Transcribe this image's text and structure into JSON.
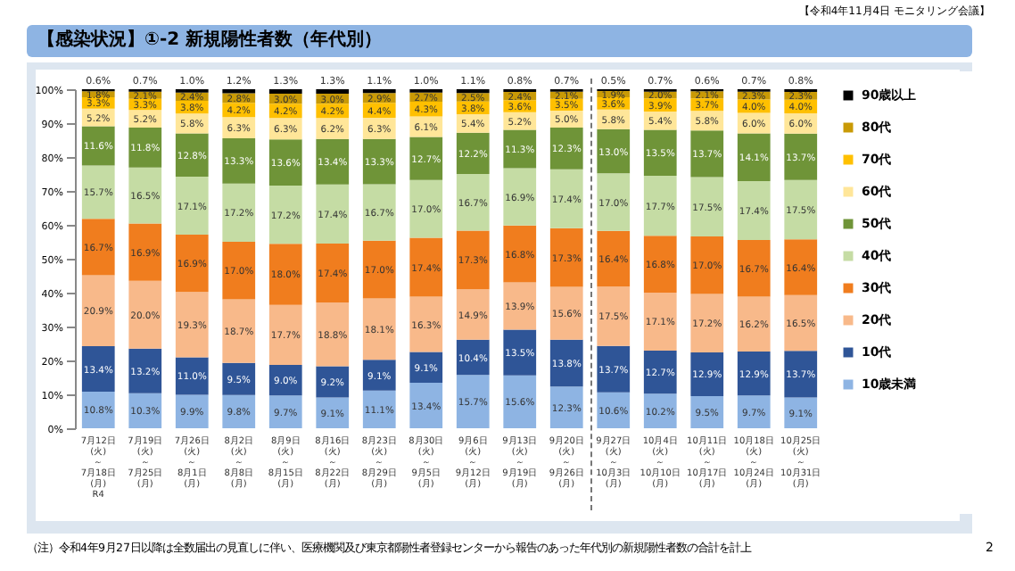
{
  "chart_data": {
    "type": "bar",
    "stacked": true,
    "title": "【感染状況】①-2 新規陽性者数（年代別）",
    "annotations": [
      "【令和4年11月4日 モニタリング会議】",
      "（注）令和4年9月27日以降は全数届出の見直しに伴い、医療機関及び東京都陽性者登録センターから報告のあった年代別の新規陽性者数の合計を計上",
      "2"
    ],
    "categories": [
      "7月12日\n(火)\n～\n7月18日\n(月)\nR4",
      "7月19日\n(火)\n～\n7月25日\n(月)",
      "7月26日\n(火)\n～\n8月1日\n(月)",
      "8月2日\n(火)\n～\n8月8日\n(月)",
      "8月9日\n(火)\n～\n8月15日\n(月)",
      "8月16日\n(火)\n～\n8月22日\n(月)",
      "8月23日\n(火)\n～\n8月29日\n(月)",
      "8月30日\n(火)\n～\n9月5日\n(月)",
      "9月6日\n(火)\n～\n9月12日\n(月)",
      "9月13日\n(火)\n～\n9月19日\n(月)",
      "9月20日\n(火)\n～\n9月26日\n(月)",
      "9月27日\n(火)\n～\n10月3日\n(月)",
      "10月4日\n(火)\n～\n10月10日\n(月)",
      "10月11日\n(火)\n～\n10月17日\n(月)",
      "10月18日\n(火)\n～\n10月24日\n(月)",
      "10月25日\n(火)\n～\n10月31日\n(月)"
    ],
    "ylim": [
      0,
      100
    ],
    "yticks": [
      {
        "value": 0,
        "label": "0%"
      },
      {
        "value": 10,
        "label": "10%"
      },
      {
        "value": 20,
        "label": "20%"
      },
      {
        "value": 30,
        "label": "30%"
      },
      {
        "value": 40,
        "label": "40%"
      },
      {
        "value": 50,
        "label": "50%"
      },
      {
        "value": 60,
        "label": "60%"
      },
      {
        "value": 70,
        "label": "70%"
      },
      {
        "value": 80,
        "label": "80%"
      },
      {
        "value": 90,
        "label": "90%"
      },
      {
        "value": 100,
        "label": "100%"
      }
    ],
    "legend": "right",
    "series": [
      {
        "name": "10歳未満",
        "color": "#8eb4e3",
        "values": [
          10.8,
          10.3,
          9.9,
          9.8,
          9.7,
          9.1,
          11.1,
          13.4,
          15.7,
          15.6,
          12.3,
          10.6,
          10.2,
          9.5,
          9.7,
          9.1
        ],
        "value_labels": [
          "10.8%",
          "10.3%",
          "9.9%",
          "9.8%",
          "9.7%",
          "9.1%",
          "11.1%",
          "13.4%",
          "15.7%",
          "15.6%",
          "12.3%",
          "10.6%",
          "10.2%",
          "9.5%",
          "9.7%",
          "9.1%"
        ]
      },
      {
        "name": "10代",
        "color": "#2f5597",
        "values": [
          13.4,
          13.2,
          11.0,
          9.5,
          9.0,
          9.2,
          9.1,
          9.1,
          10.4,
          13.5,
          13.8,
          13.7,
          12.7,
          12.9,
          12.9,
          13.7
        ],
        "value_labels": [
          "13.4%",
          "13.2%",
          "11.0%",
          "9.5%",
          "9.0%",
          "9.2%",
          "9.1%",
          "9.1%",
          "10.4%",
          "13.5%",
          "13.8%",
          "13.7%",
          "12.7%",
          "12.9%",
          "12.9%",
          "13.7%"
        ]
      },
      {
        "name": "20代",
        "color": "#f8b98a",
        "values": [
          20.9,
          20.0,
          19.3,
          18.7,
          17.7,
          18.8,
          18.1,
          16.3,
          14.9,
          13.9,
          15.6,
          17.5,
          17.1,
          17.2,
          16.2,
          16.5
        ],
        "value_labels": [
          "20.9%",
          "20.0%",
          "19.3%",
          "18.7%",
          "17.7%",
          "18.8%",
          "18.1%",
          "16.3%",
          "14.9%",
          "13.9%",
          "15.6%",
          "17.5%",
          "17.1%",
          "17.2%",
          "16.2%",
          "16.5%"
        ]
      },
      {
        "name": "30代",
        "color": "#f07d1e",
        "values": [
          16.7,
          16.9,
          16.9,
          17.0,
          18.0,
          17.4,
          17.0,
          17.4,
          17.3,
          16.8,
          17.3,
          16.4,
          16.8,
          17.0,
          16.7,
          16.4
        ],
        "value_labels": [
          "16.7%",
          "16.9%",
          "16.9%",
          "17.0%",
          "18.0%",
          "17.4%",
          "17.0%",
          "17.4%",
          "17.3%",
          "16.8%",
          "17.3%",
          "16.4%",
          "16.8%",
          "17.0%",
          "16.7%",
          "16.4%"
        ]
      },
      {
        "name": "40代",
        "color": "#c5dca4",
        "values": [
          15.7,
          16.5,
          17.1,
          17.2,
          17.2,
          17.4,
          16.7,
          17.0,
          16.7,
          16.9,
          17.4,
          17.0,
          17.7,
          17.5,
          17.4,
          17.5
        ],
        "value_labels": [
          "15.7%",
          "16.5%",
          "17.1%",
          "17.2%",
          "17.2%",
          "17.4%",
          "16.7%",
          "17.0%",
          "16.7%",
          "16.9%",
          "17.4%",
          "17.0%",
          "17.7%",
          "17.5%",
          "17.4%",
          "17.5%"
        ]
      },
      {
        "name": "50代",
        "color": "#6f9438",
        "values": [
          11.6,
          11.8,
          12.8,
          13.3,
          13.6,
          13.4,
          13.3,
          12.7,
          12.2,
          11.3,
          12.3,
          13.0,
          13.5,
          13.7,
          14.1,
          13.7
        ],
        "value_labels": [
          "11.6%",
          "11.8%",
          "12.8%",
          "13.3%",
          "13.6%",
          "13.4%",
          "13.3%",
          "12.7%",
          "12.2%",
          "11.3%",
          "12.3%",
          "13.0%",
          "13.5%",
          "13.7%",
          "14.1%",
          "13.7%"
        ]
      },
      {
        "name": "60代",
        "color": "#ffe699",
        "values": [
          5.2,
          5.2,
          5.8,
          6.3,
          6.3,
          6.2,
          6.3,
          6.1,
          5.4,
          5.2,
          5.0,
          5.8,
          5.4,
          5.8,
          6.0,
          6.0
        ],
        "value_labels": [
          "5.2%",
          "5.2%",
          "5.8%",
          "6.3%",
          "6.3%",
          "6.2%",
          "6.3%",
          "6.1%",
          "5.4%",
          "5.2%",
          "5.0%",
          "5.8%",
          "5.4%",
          "5.8%",
          "6.0%",
          "6.0%"
        ]
      },
      {
        "name": "70代",
        "color": "#ffc000",
        "values": [
          3.3,
          3.3,
          3.8,
          4.2,
          4.2,
          4.2,
          4.4,
          4.3,
          3.8,
          3.6,
          3.5,
          3.6,
          3.9,
          3.7,
          4.0,
          4.0
        ],
        "value_labels": [
          "3.3%",
          "3.3%",
          "3.8%",
          "4.2%",
          "4.2%",
          "4.2%",
          "4.4%",
          "4.3%",
          "3.8%",
          "3.6%",
          "3.5%",
          "3.6%",
          "3.9%",
          "3.7%",
          "4.0%",
          "4.0%"
        ]
      },
      {
        "name": "80代",
        "color": "#c99a06",
        "values": [
          1.8,
          2.1,
          2.4,
          2.8,
          3.0,
          3.0,
          2.9,
          2.7,
          2.5,
          2.4,
          2.1,
          1.9,
          2.0,
          2.1,
          2.3,
          2.3
        ],
        "value_labels": [
          "1.8%",
          "2.1%",
          "2.4%",
          "2.8%",
          "3.0%",
          "3.0%",
          "2.9%",
          "2.7%",
          "2.5%",
          "2.4%",
          "2.1%",
          "1.9%",
          "2.0%",
          "2.1%",
          "2.3%",
          "2.3%"
        ]
      },
      {
        "name": "90歳以上",
        "color": "#000000",
        "values": [
          0.6,
          0.7,
          1.0,
          1.2,
          1.3,
          1.3,
          1.1,
          1.0,
          1.1,
          0.8,
          0.7,
          0.5,
          0.7,
          0.6,
          0.7,
          0.8
        ],
        "value_labels": [
          "0.6%",
          "0.7%",
          "1.0%",
          "1.2%",
          "1.3%",
          "1.3%",
          "1.1%",
          "1.0%",
          "1.1%",
          "0.8%",
          "0.7%",
          "0.5%",
          "0.7%",
          "0.6%",
          "0.7%",
          "0.8%"
        ]
      }
    ]
  }
}
